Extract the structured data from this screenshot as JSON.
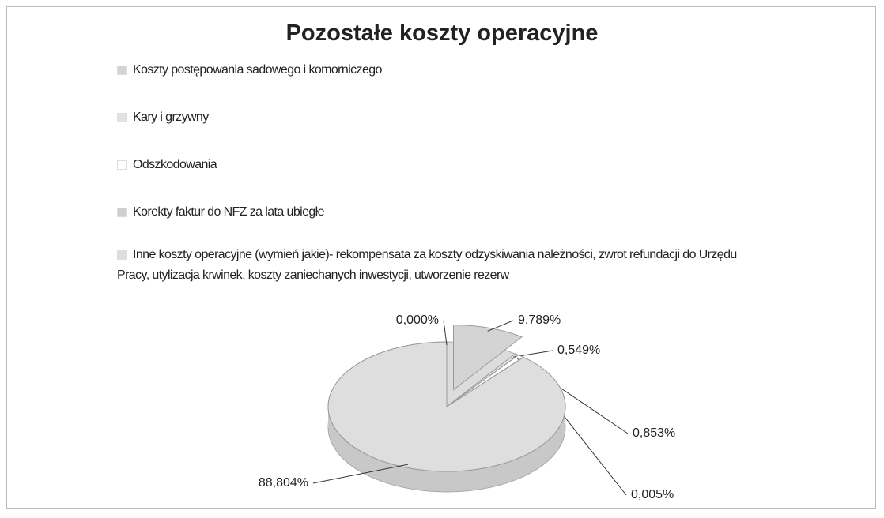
{
  "chart_data": {
    "type": "pie",
    "title": "Pozostałe koszty operacyjne",
    "categories": [
      "Koszty postępowania sadowego i komorniczego",
      "Kary i grzywny",
      "Odszkodowania",
      "Korekty faktur do NFZ za lata ubiegłe",
      "Inne koszty operacyjne (wymień jakie)- rekompensata za koszty odzyskiwania należności, zwrot refundacji do Urzędu Pracy, utylizacja krwinek, koszty zaniechanych inwestycji, utworzenie rezerw",
      null
    ],
    "values": [
      9.789,
      0.549,
      0.853,
      0.005,
      88.804,
      0.0
    ],
    "value_labels": [
      "9,789%",
      "0,549%",
      "0,853%",
      "0,005%",
      "88,804%",
      "0,000%"
    ],
    "colors": [
      "#d4d4d4",
      "#e2e2e2",
      "#ffffff",
      "#cfcfcf",
      "#dedede",
      "#e8e8e8"
    ]
  }
}
